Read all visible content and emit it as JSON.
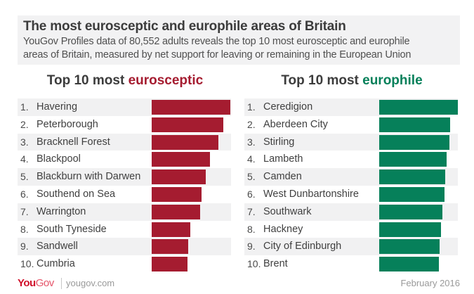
{
  "header": {
    "title": "The most eurosceptic and europhile areas of Britain",
    "subtitle_line1": "YouGov Profiles data of 80,552 adults reveals the top 10 most eurosceptic and europhile",
    "subtitle_line2": "areas of Britain, measured by net support for leaving or remaining in the European Union"
  },
  "left_panel": {
    "title_prefix": "Top 10 most ",
    "title_accent": "eurosceptic",
    "accent_color": "#a51c30"
  },
  "right_panel": {
    "title_prefix": "Top 10 most ",
    "title_accent": "europhile",
    "accent_color": "#06805a"
  },
  "footer": {
    "logo_you": "You",
    "logo_gov": "Gov",
    "site": "yougov.com",
    "date": "February 2016"
  },
  "chart_data": [
    {
      "type": "bar",
      "orientation": "horizontal",
      "title": "Top 10 most eurosceptic",
      "categories": [
        "Havering",
        "Peterborough",
        "Bracknell Forest",
        "Blackpool",
        "Blackburn with Darwen",
        "Southend on Sea",
        "Warrington",
        "South Tyneside",
        "Sandwell",
        "Cumbria"
      ],
      "ranks": [
        "1.",
        "2.",
        "3.",
        "4.",
        "5.",
        "6.",
        "7.",
        "8.",
        "9.",
        "10."
      ],
      "values": [
        112,
        102,
        95,
        83,
        77,
        71,
        69,
        55,
        52,
        51
      ],
      "value_unit": "relative bar length (px, unlabeled)",
      "color": "#a51c30",
      "xlabel": "",
      "ylabel": "",
      "grid": false,
      "legend": false
    },
    {
      "type": "bar",
      "orientation": "horizontal",
      "title": "Top 10 most europhile",
      "categories": [
        "Ceredigion",
        "Aberdeen City",
        "Stirling",
        "Lambeth",
        "Camden",
        "West Dunbartonshire",
        "Southwark",
        "Hackney",
        "City of Edinburgh",
        "Brent"
      ],
      "ranks": [
        "1.",
        "2.",
        "3.",
        "4.",
        "5.",
        "6.",
        "7.",
        "8.",
        "9.",
        "10."
      ],
      "values": [
        112,
        101,
        100,
        96,
        94,
        93,
        90,
        88,
        86,
        85
      ],
      "value_unit": "relative bar length (px, unlabeled)",
      "color": "#06805a",
      "xlabel": "",
      "ylabel": "",
      "grid": false,
      "legend": false
    }
  ]
}
